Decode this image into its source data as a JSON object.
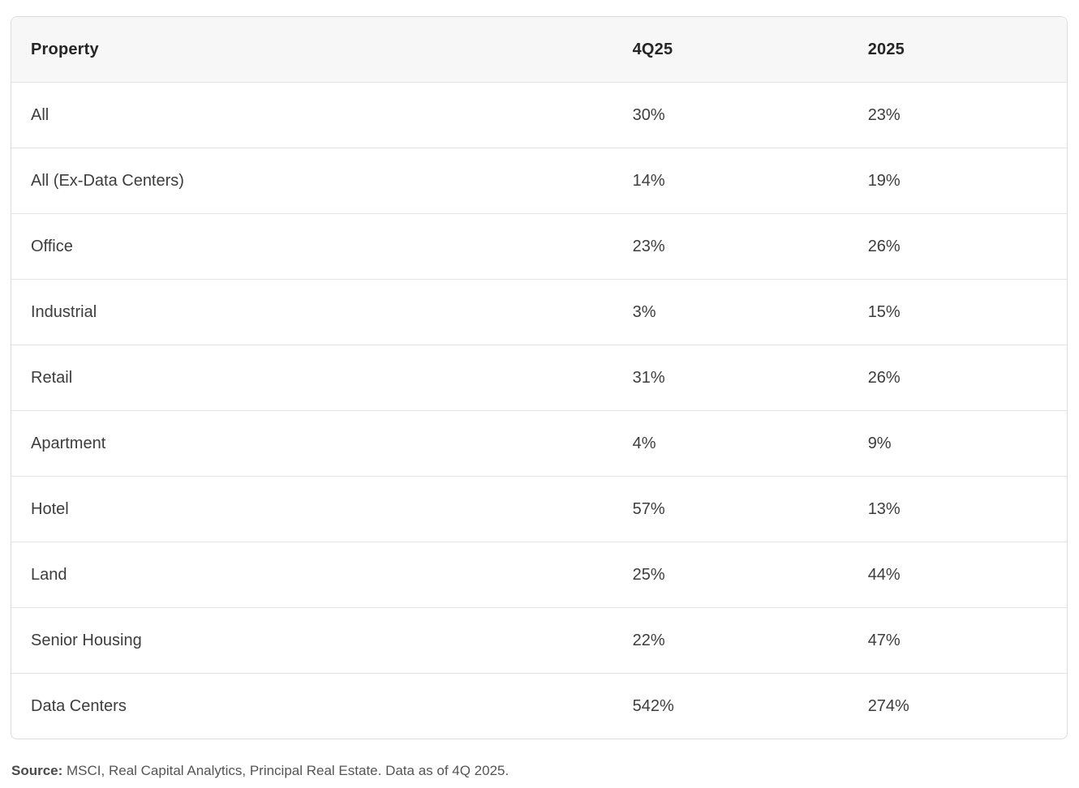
{
  "chart_data": {
    "type": "table",
    "columns": [
      "Property",
      "4Q25",
      "2025"
    ],
    "rows": [
      [
        "All",
        "30%",
        "23%"
      ],
      [
        "All (Ex-Data Centers)",
        "14%",
        "19%"
      ],
      [
        "Office",
        "23%",
        "26%"
      ],
      [
        "Industrial",
        "3%",
        "15%"
      ],
      [
        "Retail",
        "31%",
        "26%"
      ],
      [
        "Apartment",
        "4%",
        "9%"
      ],
      [
        "Hotel",
        "57%",
        "13%"
      ],
      [
        "Land",
        "25%",
        "44%"
      ],
      [
        "Senior Housing",
        "22%",
        "47%"
      ],
      [
        "Data Centers",
        "542%",
        "274%"
      ]
    ],
    "source_note": "Source: MSCI, Real Capital Analytics, Principal Real Estate. Data as of 4Q 2025."
  },
  "source": {
    "label": "Source:",
    "text": " MSCI, Real Capital Analytics, Principal Real Estate. Data as of 4Q 2025."
  },
  "colors": {
    "header_bg": "#f7f7f7",
    "table_border": "#dcdcdc",
    "row_separator": "#e4e4e4",
    "header_text": "#262626",
    "cell_text": "#3d3d3d",
    "source_text": "#555555"
  }
}
